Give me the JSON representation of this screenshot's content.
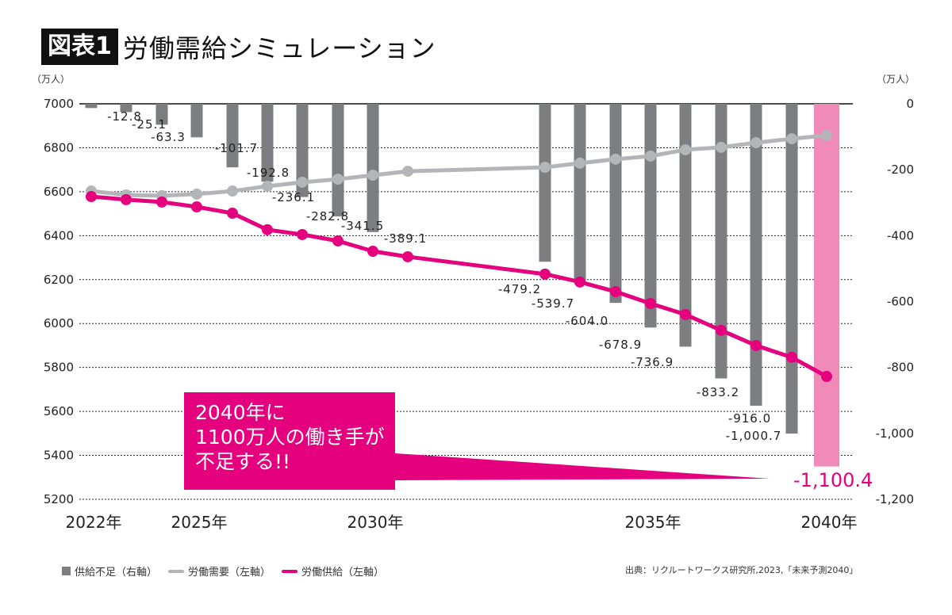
{
  "header": {
    "badge": "図表1",
    "title": "労働需給シミュレーション"
  },
  "callout": {
    "line1": "2040年に",
    "line2": "1100万人の働き手が",
    "line3": "不足する!!"
  },
  "legend": [
    {
      "label": "供給不足（右軸）",
      "color": "#7d7e82",
      "shape": "square"
    },
    {
      "label": "労働需要（左軸）",
      "color": "#b4b5b8",
      "shape": "line"
    },
    {
      "label": "労働供給（左軸）",
      "color": "#e5007e",
      "shape": "line"
    }
  ],
  "source": "出典：リクルートワークス研究所,2023,「未来予測2040」",
  "chart_data": {
    "type": "bar+line",
    "title": "労働需給シミュレーション",
    "left_axis": {
      "label": "（万人）",
      "range": [
        5200,
        7000
      ],
      "ticks": [
        7000,
        6800,
        6600,
        6400,
        6200,
        6000,
        5800,
        5600,
        5400,
        5200
      ]
    },
    "right_axis": {
      "label": "（万人）",
      "range": [
        -1200,
        0
      ],
      "ticks": [
        "0",
        "-200",
        "-400",
        "-600",
        "-800",
        "-1,000",
        "-1,200"
      ]
    },
    "x_tick_labels": [
      {
        "year": 2022,
        "label": "2022年"
      },
      {
        "year": 2025,
        "label": "2025年"
      },
      {
        "year": 2030,
        "label": "2030年"
      },
      {
        "year": 2035,
        "label": "2035年"
      },
      {
        "year": 2040,
        "label": "2040年"
      }
    ],
    "years": [
      2022,
      2023,
      2024,
      2025,
      2026,
      2027,
      2028,
      2029,
      2030,
      2031,
      2032,
      2033,
      2034,
      2035,
      2036,
      2037,
      2038,
      2039,
      2040
    ],
    "grid": true,
    "legend_position": "bottom-left",
    "series": [
      {
        "name": "供給不足（右軸）",
        "type": "bar",
        "axis": "right",
        "color": "#7d7e82",
        "highlight_color": "#f08ab8",
        "values": [
          -12.8,
          -25.1,
          -63.3,
          -101.7,
          -192.8,
          -236.1,
          -282.8,
          -341.5,
          -389.1,
          null,
          -479.2,
          -539.7,
          -604.0,
          -678.9,
          -736.9,
          -833.2,
          -916.0,
          -1000.7,
          -1100.4
        ],
        "labels": [
          "-12.8",
          "-25.1",
          "-63.3",
          "-101.7",
          "-192.8",
          "-236.1",
          "-282.8",
          "-341.5",
          "-389.1",
          "",
          "-479.2",
          "-539.7",
          "-604.0",
          "-678.9",
          "-736.9",
          "-833.2",
          "-916.0",
          "-1,000.7",
          "-1,100.4"
        ]
      },
      {
        "name": "労働需要（左軸）",
        "type": "line",
        "axis": "left",
        "color": "#b4b5b8",
        "values": [
          6603,
          6585,
          6582,
          6589,
          6603,
          6625,
          6643,
          6657,
          6675,
          6693,
          6711,
          6730,
          6748,
          6762,
          6791,
          6802,
          6823,
          6841,
          6856
        ]
      },
      {
        "name": "労働供給（左軸）",
        "type": "line",
        "axis": "left",
        "color": "#e5007e",
        "values": [
          6578,
          6564,
          6553,
          6531,
          6502,
          6427,
          6405,
          6376,
          6329,
          6304,
          6225,
          6189,
          6145,
          6091,
          6041,
          5969,
          5900,
          5846,
          5759
        ]
      }
    ]
  }
}
